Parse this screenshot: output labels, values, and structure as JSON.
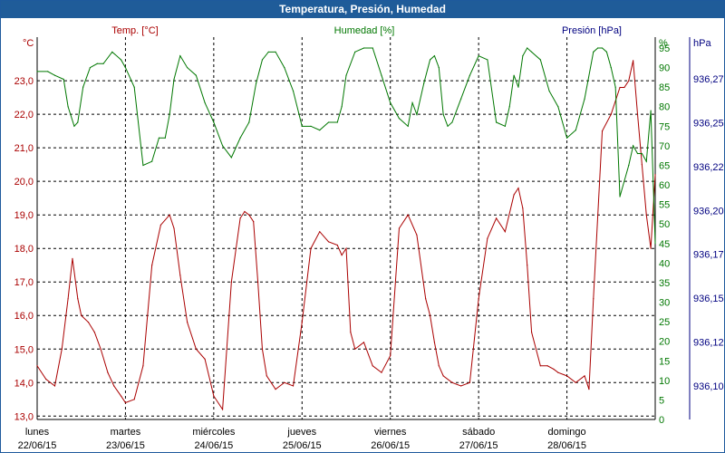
{
  "window": {
    "title": "Temperatura, Presión, Humedad"
  },
  "chart_data": {
    "type": "line",
    "title": "Temperatura, Presión, Humedad",
    "x_labels": [
      {
        "day": "lunes",
        "date": "22/06/15"
      },
      {
        "day": "martes",
        "date": "23/06/15"
      },
      {
        "day": "miércoles",
        "date": "24/06/15"
      },
      {
        "day": "jueves",
        "date": "25/06/15"
      },
      {
        "day": "viernes",
        "date": "26/06/15"
      },
      {
        "day": "sábado",
        "date": "27/06/15"
      },
      {
        "day": "domingo",
        "date": "28/06/15"
      }
    ],
    "x_range_days": [
      0,
      7
    ],
    "axes": {
      "temperature": {
        "label": "Temp. [°C]",
        "unit": "°C",
        "ylim": [
          12.9,
          24.3
        ],
        "ticks": [
          "13,0",
          "14,0",
          "15,0",
          "16,0",
          "17,0",
          "18,0",
          "19,0",
          "20,0",
          "21,0",
          "22,0",
          "23,0"
        ],
        "color": "#aa0000"
      },
      "humidity": {
        "label": "Humedad [%]",
        "unit": "%",
        "ylim": [
          0,
          95
        ],
        "ticks": [
          "0",
          "5",
          "10",
          "15",
          "20",
          "25",
          "30",
          "35",
          "40",
          "45",
          "50",
          "55",
          "60",
          "65",
          "70",
          "75",
          "80",
          "85",
          "90",
          "95"
        ],
        "color": "#007700"
      },
      "pressure": {
        "label": "Presión [hPa]",
        "unit": "hPa",
        "ticks": [
          "936,10",
          "936,12",
          "936,15",
          "936,17",
          "936,20",
          "936,22",
          "936,25",
          "936,27"
        ],
        "color": "#000080"
      }
    },
    "series": [
      {
        "name": "Temp. [°C]",
        "axis": "temperature",
        "color": "#aa0000",
        "x": [
          0,
          0.1,
          0.2,
          0.28,
          0.35,
          0.4,
          0.46,
          0.5,
          0.58,
          0.65,
          0.72,
          0.8,
          0.87,
          0.95,
          1.0,
          1.1,
          1.2,
          1.3,
          1.4,
          1.5,
          1.55,
          1.62,
          1.7,
          1.8,
          1.9,
          2.0,
          2.1,
          2.2,
          2.3,
          2.35,
          2.4,
          2.45,
          2.5,
          2.55,
          2.6,
          2.7,
          2.8,
          2.9,
          3.0,
          3.1,
          3.2,
          3.3,
          3.4,
          3.45,
          3.5,
          3.55,
          3.6,
          3.7,
          3.8,
          3.9,
          4.0,
          4.1,
          4.2,
          4.3,
          4.4,
          4.45,
          4.5,
          4.55,
          4.6,
          4.7,
          4.8,
          4.9,
          5.0,
          5.1,
          5.2,
          5.3,
          5.4,
          5.45,
          5.5,
          5.55,
          5.6,
          5.7,
          5.78,
          5.85,
          5.9,
          6.0,
          6.1,
          6.2,
          6.25,
          6.3,
          6.4,
          6.5,
          6.6,
          6.65,
          6.7,
          6.75,
          6.8,
          6.85,
          6.9,
          6.95,
          7.0
        ],
        "values": [
          14.5,
          14.1,
          13.9,
          15.0,
          16.5,
          17.7,
          16.5,
          16.0,
          15.8,
          15.5,
          15.0,
          14.3,
          13.9,
          13.6,
          13.4,
          13.5,
          14.5,
          17.5,
          18.7,
          19.0,
          18.6,
          17.2,
          15.8,
          15.0,
          14.7,
          13.6,
          13.2,
          17.0,
          18.9,
          19.1,
          19.0,
          18.8,
          17.0,
          15.0,
          14.2,
          13.8,
          14.0,
          13.9,
          15.8,
          18.0,
          18.5,
          18.2,
          18.1,
          17.8,
          18.0,
          15.5,
          15.0,
          15.2,
          14.5,
          14.3,
          14.8,
          18.6,
          19.0,
          18.4,
          16.5,
          16.0,
          15.2,
          14.5,
          14.2,
          14.0,
          13.9,
          14.0,
          16.5,
          18.3,
          18.9,
          18.5,
          19.6,
          19.8,
          19.2,
          17.5,
          15.5,
          14.5,
          14.5,
          14.4,
          14.3,
          14.2,
          14.0,
          14.2,
          13.8,
          16.5,
          21.5,
          22.0,
          22.8,
          22.8,
          23.0,
          23.6,
          22.0,
          20.5,
          19.0,
          18.0,
          20.2
        ]
      },
      {
        "name": "Humedad [%]",
        "axis": "humidity",
        "color": "#007700",
        "x": [
          0,
          0.12,
          0.2,
          0.3,
          0.35,
          0.42,
          0.46,
          0.52,
          0.6,
          0.68,
          0.75,
          0.85,
          0.95,
          1.0,
          1.1,
          1.2,
          1.3,
          1.38,
          1.45,
          1.5,
          1.55,
          1.62,
          1.7,
          1.8,
          1.9,
          2.0,
          2.1,
          2.2,
          2.3,
          2.4,
          2.48,
          2.55,
          2.62,
          2.7,
          2.8,
          2.9,
          3.0,
          3.1,
          3.2,
          3.3,
          3.4,
          3.45,
          3.5,
          3.6,
          3.7,
          3.8,
          3.9,
          4.0,
          4.1,
          4.2,
          4.25,
          4.3,
          4.38,
          4.45,
          4.5,
          4.55,
          4.6,
          4.65,
          4.7,
          4.8,
          4.9,
          5.0,
          5.1,
          5.2,
          5.3,
          5.35,
          5.4,
          5.45,
          5.5,
          5.55,
          5.6,
          5.7,
          5.8,
          5.9,
          6.0,
          6.1,
          6.2,
          6.3,
          6.35,
          6.4,
          6.45,
          6.5,
          6.55,
          6.6,
          6.7,
          6.75,
          6.8,
          6.85,
          6.9,
          6.95,
          7.0
        ],
        "values": [
          89,
          89,
          88,
          87,
          80,
          75,
          76,
          85,
          90,
          91,
          91,
          94,
          92,
          90,
          85,
          65,
          66,
          72,
          72,
          78,
          87,
          93,
          90,
          88,
          81,
          76,
          70,
          67,
          72,
          76,
          86,
          92,
          94,
          94,
          90,
          84,
          75,
          75,
          74,
          76,
          76,
          80,
          88,
          94,
          95,
          95,
          88,
          81,
          77,
          75,
          81,
          78,
          86,
          92,
          93,
          90,
          78,
          75,
          76,
          82,
          88,
          93,
          92,
          76,
          75,
          80,
          88,
          85,
          93,
          95,
          94,
          92,
          84,
          80,
          72,
          74,
          82,
          94,
          95,
          95,
          94,
          90,
          85,
          57,
          65,
          70,
          68,
          68,
          66,
          79,
          45
        ]
      }
    ],
    "grid": true,
    "legend": "top"
  }
}
